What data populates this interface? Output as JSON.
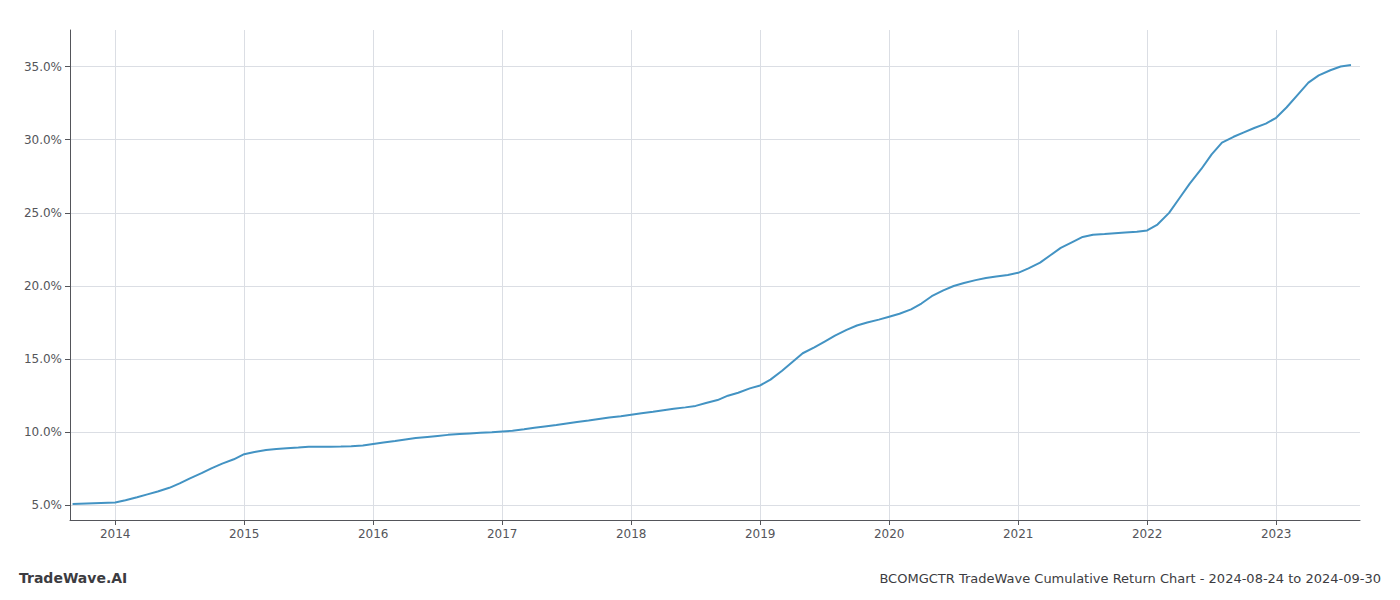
{
  "chart_data": {
    "type": "line",
    "title": "BCOMGCTR TradeWave Cumulative Return Chart - 2024-08-24 to 2024-09-30",
    "annotations": [
      "TradeWave.AI"
    ],
    "color": "#4393c3",
    "grid": true,
    "x": [
      2013.67,
      2014.0,
      2014.08,
      2014.17,
      2014.25,
      2014.33,
      2014.42,
      2014.5,
      2014.58,
      2014.67,
      2014.75,
      2014.83,
      2014.92,
      2015.0,
      2015.08,
      2015.17,
      2015.25,
      2015.33,
      2015.42,
      2015.5,
      2015.58,
      2015.67,
      2015.75,
      2015.83,
      2015.92,
      2016.0,
      2016.08,
      2016.17,
      2016.25,
      2016.33,
      2016.42,
      2016.5,
      2016.58,
      2016.67,
      2016.75,
      2016.83,
      2016.92,
      2017.0,
      2017.08,
      2017.17,
      2017.25,
      2017.33,
      2017.42,
      2017.5,
      2017.58,
      2017.67,
      2017.75,
      2017.83,
      2017.92,
      2018.0,
      2018.08,
      2018.17,
      2018.25,
      2018.33,
      2018.42,
      2018.5,
      2018.58,
      2018.67,
      2018.75,
      2018.83,
      2018.92,
      2019.0,
      2019.08,
      2019.17,
      2019.25,
      2019.33,
      2019.42,
      2019.5,
      2019.58,
      2019.67,
      2019.75,
      2019.83,
      2019.92,
      2020.0,
      2020.08,
      2020.17,
      2020.25,
      2020.33,
      2020.42,
      2020.5,
      2020.58,
      2020.67,
      2020.75,
      2020.83,
      2020.92,
      2021.0,
      2021.08,
      2021.17,
      2021.25,
      2021.33,
      2021.42,
      2021.5,
      2021.58,
      2021.67,
      2021.75,
      2021.83,
      2021.92,
      2022.0,
      2022.08,
      2022.17,
      2022.25,
      2022.33,
      2022.42,
      2022.5,
      2022.58,
      2022.67,
      2022.75,
      2022.83,
      2022.92,
      2023.0,
      2023.08,
      2023.17,
      2023.25,
      2023.33,
      2023.42,
      2023.5,
      2023.58
    ],
    "values": [
      5.1,
      5.2,
      5.35,
      5.55,
      5.75,
      5.95,
      6.2,
      6.5,
      6.85,
      7.2,
      7.55,
      7.85,
      8.15,
      8.5,
      8.65,
      8.78,
      8.85,
      8.9,
      8.95,
      9.0,
      9.0,
      9.0,
      9.02,
      9.05,
      9.1,
      9.2,
      9.3,
      9.4,
      9.5,
      9.6,
      9.68,
      9.75,
      9.82,
      9.88,
      9.92,
      9.96,
      10.0,
      10.05,
      10.1,
      10.2,
      10.3,
      10.4,
      10.5,
      10.6,
      10.7,
      10.8,
      10.9,
      11.0,
      11.1,
      11.2,
      11.3,
      11.4,
      11.5,
      11.6,
      11.7,
      11.8,
      12.0,
      12.2,
      12.5,
      12.7,
      13.0,
      13.2,
      13.6,
      14.2,
      14.8,
      15.4,
      15.8,
      16.2,
      16.6,
      17.0,
      17.3,
      17.5,
      17.7,
      17.9,
      18.1,
      18.4,
      18.8,
      19.3,
      19.7,
      20.0,
      20.2,
      20.4,
      20.55,
      20.65,
      20.75,
      20.9,
      21.2,
      21.6,
      22.1,
      22.6,
      23.0,
      23.35,
      23.5,
      23.55,
      23.6,
      23.65,
      23.7,
      23.8,
      24.2,
      25.0,
      26.0,
      27.0,
      28.0,
      29.0,
      29.8,
      30.2,
      30.5,
      30.8,
      31.1,
      31.5,
      32.2,
      33.1,
      33.9,
      34.4,
      34.75,
      35.0,
      35.1
    ],
    "xlim": [
      2013.65,
      2023.65
    ],
    "xticks": [
      2014,
      2015,
      2016,
      2017,
      2018,
      2019,
      2020,
      2021,
      2022,
      2023
    ],
    "ylim": [
      4.0,
      37.5
    ],
    "yticks": [
      {
        "value": 5.0,
        "label": "5.0%"
      },
      {
        "value": 10.0,
        "label": "10.0%"
      },
      {
        "value": 15.0,
        "label": "15.0%"
      },
      {
        "value": 20.0,
        "label": "20.0%"
      },
      {
        "value": 25.0,
        "label": "25.0%"
      },
      {
        "value": 30.0,
        "label": "30.0%"
      },
      {
        "value": 35.0,
        "label": "35.0%"
      }
    ]
  }
}
